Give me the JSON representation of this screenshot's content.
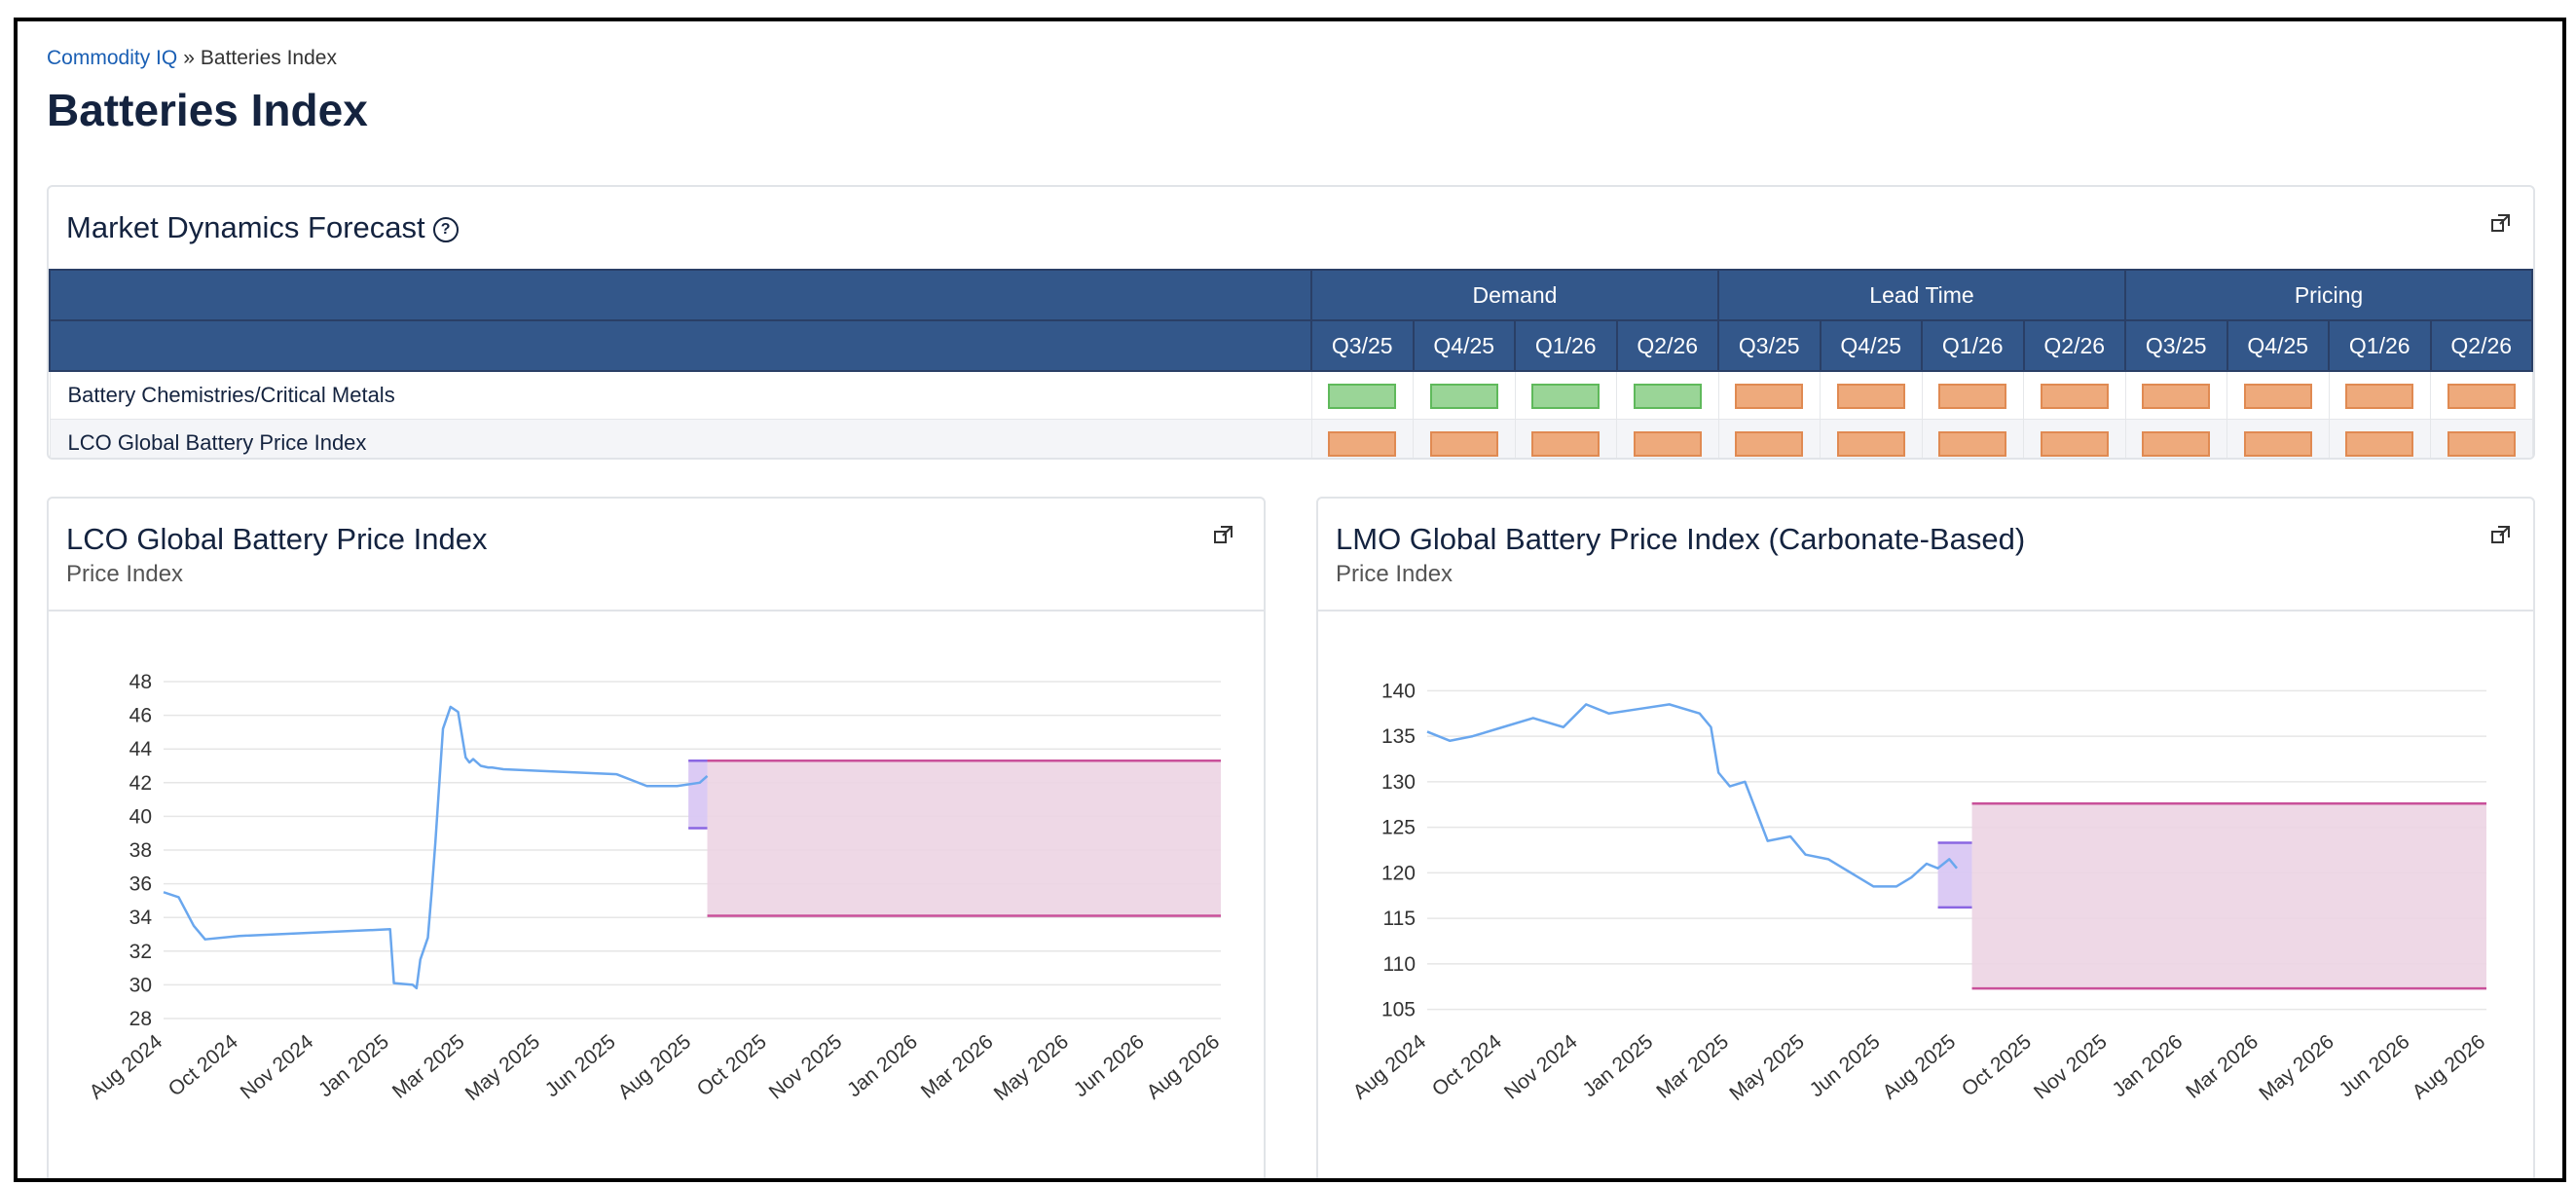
{
  "breadcrumb": {
    "root": "Commodity IQ",
    "separator": "»",
    "current": "Batteries Index"
  },
  "page_title": "Batteries Index",
  "colors": {
    "header_bg": "#33578a",
    "green": "#9ad597",
    "orange": "#eeaa7c",
    "line": "#6aa7ee",
    "forecast_band": "#ecd4e3",
    "band_edge": "#c9509a",
    "purple_band": "#d9c7f3",
    "purple_edge": "#8a66e2"
  },
  "forecast": {
    "title": "Market Dynamics Forecast",
    "help_icon": "question-circle-icon",
    "expand_icon": "expand-icon",
    "groups": [
      "Demand",
      "Lead Time",
      "Pricing"
    ],
    "quarters": [
      "Q3/25",
      "Q4/25",
      "Q1/26",
      "Q2/26",
      "Q3/25",
      "Q4/25",
      "Q1/26",
      "Q2/26",
      "Q3/25",
      "Q4/25",
      "Q1/26",
      "Q2/26"
    ],
    "rows": [
      {
        "label": "Battery Chemistries/Critical Metals",
        "cells": [
          "green",
          "green",
          "green",
          "green",
          "orange",
          "orange",
          "orange",
          "orange",
          "orange",
          "orange",
          "orange",
          "orange"
        ]
      },
      {
        "label": "LCO Global Battery Price Index",
        "cells": [
          "orange",
          "orange",
          "orange",
          "orange",
          "orange",
          "orange",
          "orange",
          "orange",
          "orange",
          "orange",
          "orange",
          "orange"
        ]
      }
    ]
  },
  "charts": {
    "lco": {
      "title": "LCO Global Battery Price Index",
      "subtitle": "Price Index"
    },
    "lmo": {
      "title": "LMO Global Battery Price Index (Carbonate-Based)",
      "subtitle": "Price Index"
    }
  },
  "chart_data": [
    {
      "type": "line",
      "title": "LCO Global Battery Price Index",
      "ylabel": "Price Index",
      "x_ticks": [
        "Aug 2024",
        "Oct 2024",
        "Nov 2024",
        "Jan 2025",
        "Mar 2025",
        "May 2025",
        "Jun 2025",
        "Aug 2025",
        "Oct 2025",
        "Nov 2025",
        "Jan 2026",
        "Mar 2026",
        "May 2026",
        "Jun 2026",
        "Aug 2026"
      ],
      "y_ticks": [
        28,
        30,
        32,
        34,
        36,
        38,
        40,
        42,
        44,
        46,
        48
      ],
      "ylim": [
        28,
        48
      ],
      "grid": true,
      "series": [
        {
          "x": [
            0,
            0.2,
            0.4,
            0.55,
            1,
            2,
            3,
            3.05,
            3.3,
            3.35,
            3.4,
            3.5,
            3.55,
            3.6,
            3.7,
            3.8,
            3.9,
            4.0,
            4.05,
            4.1,
            4.2,
            4.3,
            4.35,
            4.5,
            5,
            6,
            6.4,
            6.8,
            7.1,
            7.2
          ],
          "y": [
            35.5,
            35.2,
            33.5,
            32.7,
            32.9,
            33.1,
            33.3,
            30.1,
            30.0,
            29.8,
            31.5,
            32.8,
            35.5,
            38.5,
            45.2,
            46.5,
            46.2,
            43.5,
            43.2,
            43.4,
            43.0,
            42.9,
            42.9,
            42.8,
            42.7,
            42.5,
            41.8,
            41.8,
            42.0,
            42.4
          ]
        }
      ],
      "forecast_band": {
        "x": [
          7.2,
          14
        ],
        "y": [
          34.1,
          43.3
        ]
      },
      "uncertainty_band": {
        "x": [
          6.95,
          7.2
        ],
        "y": [
          39.3,
          43.3
        ]
      }
    },
    {
      "type": "line",
      "title": "LMO Global Battery Price Index (Carbonate-Based)",
      "ylabel": "Price Index",
      "x_ticks": [
        "Aug 2024",
        "Oct 2024",
        "Nov 2024",
        "Jan 2025",
        "Mar 2025",
        "May 2025",
        "Jun 2025",
        "Aug 2025",
        "Oct 2025",
        "Nov 2025",
        "Jan 2026",
        "Mar 2026",
        "May 2026",
        "Jun 2026",
        "Aug 2026"
      ],
      "y_ticks": [
        105,
        110,
        115,
        120,
        125,
        130,
        135,
        140
      ],
      "ylim": [
        104,
        141
      ],
      "grid": true,
      "series": [
        {
          "x": [
            0,
            0.3,
            0.6,
            1,
            1.4,
            1.8,
            2.1,
            2.4,
            2.8,
            3.2,
            3.6,
            3.75,
            3.85,
            4.0,
            4.2,
            4.5,
            4.8,
            5,
            5.3,
            5.6,
            5.9,
            6.2,
            6.4,
            6.6,
            6.75,
            6.9,
            7.0
          ],
          "y": [
            135.5,
            134.5,
            135,
            136,
            137,
            136,
            138.5,
            137.5,
            138,
            138.5,
            137.5,
            136,
            131,
            129.5,
            130,
            123.5,
            124,
            122,
            121.5,
            120,
            118.5,
            118.5,
            119.5,
            121,
            120.5,
            121.5,
            120.5
          ]
        }
      ],
      "forecast_band": {
        "x": [
          7.2,
          14
        ],
        "y": [
          107.3,
          127.6
        ]
      },
      "uncertainty_band": {
        "x": [
          6.75,
          7.2
        ],
        "y": [
          116.2,
          123.3
        ]
      }
    }
  ]
}
